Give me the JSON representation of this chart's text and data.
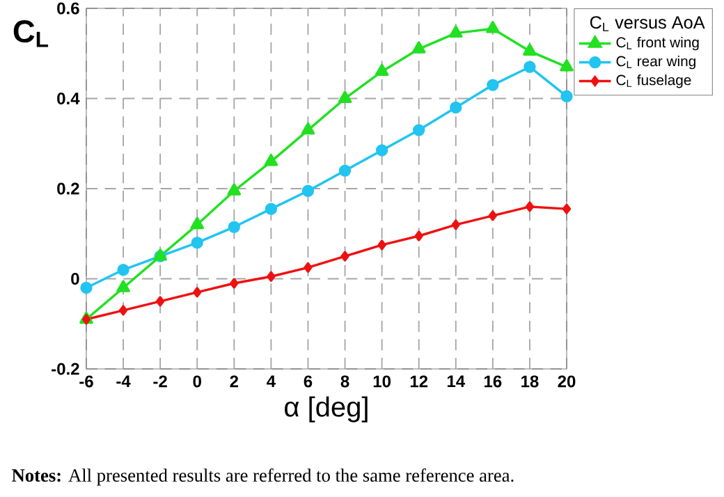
{
  "chart_data": {
    "type": "line",
    "ylabel": "C$_{L}$",
    "xlabel": "α [deg]",
    "legend_title": "C$_{L}$ versus AoA",
    "x": [
      -6,
      -4,
      -2,
      0,
      2,
      4,
      6,
      8,
      10,
      12,
      14,
      16,
      18,
      20
    ],
    "series": [
      {
        "name": "C$_{L}$ front wing",
        "color": "#22e022",
        "marker": "triangle",
        "values": [
          -0.09,
          -0.02,
          0.05,
          0.12,
          0.195,
          0.26,
          0.33,
          0.4,
          0.46,
          0.51,
          0.545,
          0.555,
          0.505,
          0.47
        ]
      },
      {
        "name": "C$_{L}$ rear wing",
        "color": "#22c4f0",
        "marker": "circle",
        "values": [
          -0.02,
          0.02,
          0.05,
          0.08,
          0.115,
          0.155,
          0.195,
          0.24,
          0.285,
          0.33,
          0.38,
          0.43,
          0.47,
          0.405
        ]
      },
      {
        "name": "C$_{L}$ fuselage",
        "color": "#ee1111",
        "marker": "diamond",
        "values": [
          -0.09,
          -0.07,
          -0.05,
          -0.03,
          -0.01,
          0.005,
          0.025,
          0.05,
          0.075,
          0.095,
          0.12,
          0.14,
          0.16,
          0.155
        ]
      }
    ],
    "xlim": [
      -6,
      20
    ],
    "xticks": [
      -6,
      -4,
      -2,
      0,
      2,
      4,
      6,
      8,
      10,
      12,
      14,
      16,
      18,
      20
    ],
    "ylim": [
      -0.2,
      0.6
    ],
    "yticks": [
      -0.2,
      0,
      0.2,
      0.4,
      0.6
    ],
    "grid": true,
    "legend": "top right",
    "annotations": [
      "**Notes:** All presented results are referred to the same reference area."
    ]
  }
}
